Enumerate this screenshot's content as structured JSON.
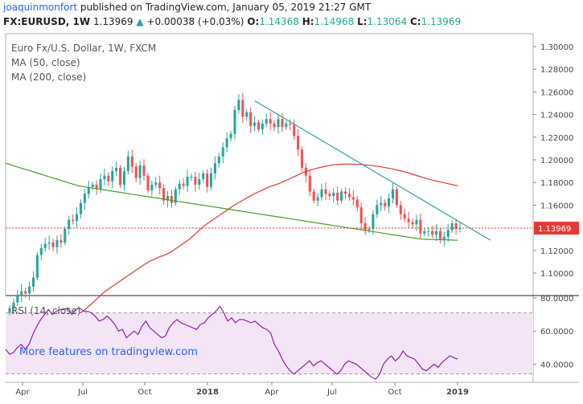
{
  "header": {
    "author": "joaquinmonfort",
    "published": "published on TradingView.com, January 05, 2019 21:27 GMT",
    "symbol": "FX:EURUSD, 1W",
    "last": "1.13969",
    "change": "+0.00038 (+0.03%)",
    "o_label": "O:",
    "o_value": "1.14368",
    "h_label": "H:",
    "h_value": "1.14968",
    "l_label": "L:",
    "l_value": "1.13064",
    "c_label": "C:",
    "c_value": "1.13969"
  },
  "colors": {
    "up": "#26a69a",
    "down": "#ef5350",
    "ma50": "#e53935",
    "ma200": "#4c9a2a",
    "trendline": "#26a69a",
    "rsi": "#8e24aa",
    "rsi_band": "#f3e5f5",
    "price_line": "#e53935"
  },
  "promo": "More features on tradingview.com",
  "chart_data": [
    {
      "type": "candlestick",
      "title": "Euro Fx/U.S. Dollar, 1W, FXCM",
      "legend": [
        "MA (50, close)",
        "MA (200, close)"
      ],
      "ylim": [
        1.1,
        1.3
      ],
      "yticks": [
        "1.30000",
        "1.28000",
        "1.26000",
        "1.24000",
        "1.22000",
        "1.20000",
        "1.18000",
        "1.16000",
        "1.14000",
        "1.12000",
        "1.10000"
      ],
      "xticks": [
        "Apr",
        "Jul",
        "Oct",
        "2018",
        "Apr",
        "Jul",
        "Oct",
        "2019"
      ],
      "last_price_label": "1.13969",
      "close": [
        1.069,
        1.074,
        1.08,
        1.084,
        1.082,
        1.088,
        1.096,
        1.116,
        1.122,
        1.126,
        1.127,
        1.123,
        1.129,
        1.127,
        1.139,
        1.147,
        1.146,
        1.152,
        1.162,
        1.17,
        1.176,
        1.178,
        1.174,
        1.183,
        1.186,
        1.181,
        1.19,
        1.193,
        1.178,
        1.19,
        1.203,
        1.194,
        1.184,
        1.195,
        1.186,
        1.173,
        1.178,
        1.18,
        1.175,
        1.164,
        1.168,
        1.162,
        1.174,
        1.179,
        1.177,
        1.185,
        1.185,
        1.178,
        1.183,
        1.188,
        1.176,
        1.188,
        1.197,
        1.203,
        1.211,
        1.219,
        1.223,
        1.244,
        1.253,
        1.238,
        1.242,
        1.23,
        1.233,
        1.227,
        1.232,
        1.236,
        1.232,
        1.229,
        1.236,
        1.229,
        1.232,
        1.231,
        1.221,
        1.209,
        1.193,
        1.186,
        1.172,
        1.164,
        1.167,
        1.174,
        1.17,
        1.168,
        1.171,
        1.164,
        1.172,
        1.17,
        1.167,
        1.165,
        1.158,
        1.144,
        1.138,
        1.139,
        1.152,
        1.16,
        1.162,
        1.159,
        1.166,
        1.174,
        1.16,
        1.152,
        1.148,
        1.145,
        1.143,
        1.147,
        1.135,
        1.137,
        1.137,
        1.134,
        1.137,
        1.13,
        1.132,
        1.138,
        1.144,
        1.139,
        1.1397
      ],
      "ma50": [
        1.065,
        1.068,
        1.072,
        1.076,
        1.08,
        1.084,
        1.087,
        1.09,
        1.093,
        1.096,
        1.099,
        1.102,
        1.105,
        1.108,
        1.1105,
        1.1125,
        1.1145,
        1.116,
        1.118,
        1.121,
        1.124,
        1.127,
        1.13,
        1.134,
        1.138,
        1.142,
        1.145,
        1.148,
        1.151,
        1.154,
        1.157,
        1.16,
        1.1625,
        1.165,
        1.1675,
        1.17,
        1.172,
        1.174,
        1.176,
        1.1775,
        1.179,
        1.181,
        1.183,
        1.185,
        1.187,
        1.189,
        1.1905,
        1.1918,
        1.193,
        1.194,
        1.1948,
        1.1955,
        1.196,
        1.1962,
        1.1963,
        1.1962,
        1.196,
        1.1957,
        1.1953,
        1.1948,
        1.1942,
        1.1935,
        1.1927,
        1.1918,
        1.1908,
        1.1897,
        1.1885,
        1.1872,
        1.1858,
        1.1845,
        1.1832,
        1.182,
        1.181,
        1.18,
        1.179,
        1.178,
        1.1772
      ],
      "ma200": [
        1.197,
        1.195,
        1.193,
        1.191,
        1.189,
        1.187,
        1.185,
        1.183,
        1.181,
        1.179,
        1.177,
        1.176,
        1.175,
        1.174,
        1.173,
        1.172,
        1.171,
        1.17,
        1.169,
        1.168,
        1.167,
        1.166,
        1.165,
        1.164,
        1.163,
        1.162,
        1.161,
        1.16,
        1.159,
        1.158,
        1.157,
        1.156,
        1.155,
        1.154,
        1.153,
        1.152,
        1.151,
        1.15,
        1.149,
        1.148,
        1.147,
        1.146,
        1.145,
        1.144,
        1.143,
        1.142,
        1.141,
        1.14,
        1.139,
        1.138,
        1.137,
        1.136,
        1.135,
        1.134,
        1.133,
        1.132,
        1.131,
        1.13,
        1.1298,
        1.1296,
        1.1294,
        1.1292,
        1.129
      ],
      "trendline": [
        [
          1.252,
          1.129
        ]
      ]
    },
    {
      "type": "line",
      "title": "RSI (14, close)",
      "ylim": [
        25,
        80
      ],
      "yticks": [
        "80.0000",
        "60.0000",
        "40.0000"
      ],
      "bands": [
        30,
        70
      ],
      "values": [
        49,
        46,
        47,
        50,
        52,
        49,
        52,
        58,
        63,
        67,
        70,
        73,
        70,
        72,
        73,
        73,
        74,
        70,
        73,
        74,
        72,
        72,
        71,
        69,
        66,
        67,
        69,
        67,
        64,
        60,
        61,
        56,
        58,
        60,
        58,
        63,
        66,
        62,
        60,
        58,
        56,
        57,
        62,
        65,
        67,
        65,
        64,
        63,
        62,
        61,
        64,
        65,
        68,
        70,
        72,
        75,
        71,
        66,
        68,
        65,
        67,
        67,
        66,
        65,
        66,
        64,
        62,
        61,
        59,
        52,
        48,
        43,
        39,
        36,
        34,
        36,
        38,
        40,
        42,
        39,
        41,
        42,
        40,
        38,
        36,
        34,
        36,
        40,
        42,
        41,
        40,
        38,
        36,
        34,
        32,
        31,
        34,
        40,
        43,
        45,
        42,
        44,
        48,
        45,
        44,
        43,
        40,
        37,
        36,
        38,
        40,
        38,
        41,
        43,
        45,
        44,
        43
      ]
    }
  ]
}
